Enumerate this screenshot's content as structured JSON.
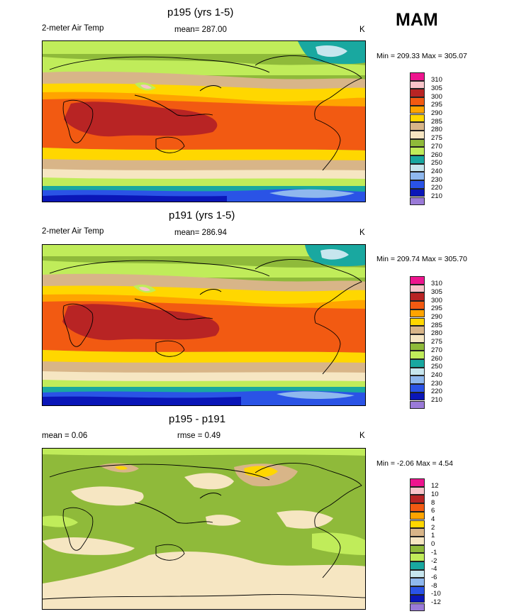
{
  "season": "MAM",
  "colors": {
    "deep_blue": "#0a16b8",
    "blue": "#2a53e6",
    "light_blue": "#8fb8ee",
    "pale_blue": "#c7e6ee",
    "teal": "#19a8a0",
    "olive_green": "#8fba3a",
    "lime": "#c0ec5a",
    "tan": "#d8b588",
    "cream": "#f6e6c2",
    "yellow": "#ffd700",
    "orange": "#ffa400",
    "orange_red": "#f25a12",
    "dark_red": "#b82424",
    "pink": "#f8c4c9",
    "magenta": "#ee148e",
    "lavender": "#9a7ad8"
  },
  "panels": [
    {
      "title": "p195 (yrs 1-5)",
      "left_label": "2-meter Air Temp",
      "center_label": "mean= 287.00",
      "units": "K",
      "minmax": "Min = 209.33 Max = 305.07",
      "colorbar": {
        "labels": [
          "310",
          "305",
          "300",
          "295",
          "290",
          "285",
          "280",
          "275",
          "270",
          "260",
          "250",
          "240",
          "230",
          "220",
          "210"
        ],
        "colors": [
          "#ee148e",
          "#f8c4c9",
          "#b82424",
          "#f25a12",
          "#ffa400",
          "#ffd700",
          "#d8b588",
          "#f6e6c2",
          "#8fba3a",
          "#c0ec5a",
          "#19a8a0",
          "#c7e6ee",
          "#8fb8ee",
          "#2a53e6",
          "#0a16b8",
          "#9a7ad8"
        ]
      }
    },
    {
      "title": "p191 (yrs 1-5)",
      "left_label": "2-meter Air Temp",
      "center_label": "mean= 286.94",
      "units": "K",
      "minmax": "Min = 209.74 Max = 305.70",
      "colorbar": {
        "labels": [
          "310",
          "305",
          "300",
          "295",
          "290",
          "285",
          "280",
          "275",
          "270",
          "260",
          "250",
          "240",
          "230",
          "220",
          "210"
        ],
        "colors": [
          "#ee148e",
          "#f8c4c9",
          "#b82424",
          "#f25a12",
          "#ffa400",
          "#ffd700",
          "#d8b588",
          "#f6e6c2",
          "#8fba3a",
          "#c0ec5a",
          "#19a8a0",
          "#c7e6ee",
          "#8fb8ee",
          "#2a53e6",
          "#0a16b8",
          "#9a7ad8"
        ]
      }
    },
    {
      "title": "p195 - p191",
      "left_label": "mean =   0.06",
      "center_label": "rmse =   0.49",
      "units": "K",
      "minmax": "Min =  -2.06 Max =   4.54",
      "colorbar": {
        "labels": [
          "12",
          "10",
          "8",
          "6",
          "4",
          "2",
          "1",
          "0",
          "-1",
          "-2",
          "-4",
          "-6",
          "-8",
          "-10",
          "-12"
        ],
        "colors": [
          "#ee148e",
          "#f8c4c9",
          "#b82424",
          "#f25a12",
          "#ffa400",
          "#ffd700",
          "#d8b588",
          "#f6e6c2",
          "#8fba3a",
          "#c0ec5a",
          "#19a8a0",
          "#c7e6ee",
          "#8fb8ee",
          "#2a53e6",
          "#0a16b8",
          "#9a7ad8"
        ]
      }
    }
  ]
}
